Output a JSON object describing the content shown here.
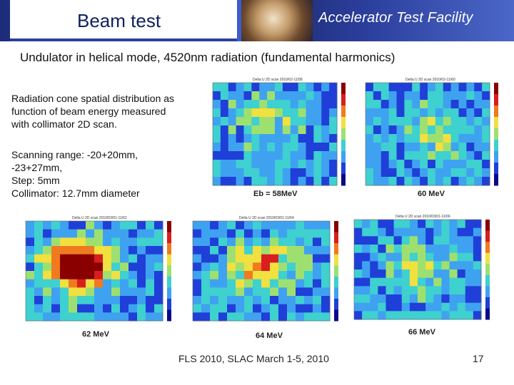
{
  "header": {
    "title": "Beam test",
    "brand": "Accelerator Test Facility"
  },
  "subtitle": "Undulator in helical mode, 4520nm radiation (fundamental harmonics)",
  "description": [
    "Radiation cone spatial distribution as",
    "function of beam energy measured",
    "with collimator 2D scan."
  ],
  "scan_info": [
    "Scanning range:  -20+20mm,",
    "-23+27mm,",
    "Step: 5mm",
    "Collimator: 12.7mm diameter"
  ],
  "plots": [
    {
      "caption": "Eb = 58MeV",
      "plot_title": "Delta U 2D scan 2010/02-11/58",
      "peak": 0.25,
      "colors": {
        "low": "#1f3fd8",
        "mid": "#3fa2f0",
        "high": "#b8f0f5"
      }
    },
    {
      "caption": "60 MeV",
      "plot_title": "Delta U 2D scan 2010/02-11/60",
      "peak": 0.3,
      "colors": {
        "low": "#1f3fd8",
        "mid": "#3fa2f0",
        "high": "#b8f0f5"
      }
    },
    {
      "caption": "62 MeV",
      "plot_title": "Delta U 2D scan 2010/03/01-11/62",
      "peak": 1.0,
      "colors": {
        "low": "#1f3fd8",
        "mid": "#3fa2f0",
        "high": "#d81e1e"
      }
    },
    {
      "caption": "64 MeV",
      "plot_title": "Delta U 2D scan 2010/03/01-11/64",
      "peak": 0.6,
      "colors": {
        "low": "#1f3fd8",
        "mid": "#3fa2f0",
        "high": "#f0e040"
      }
    },
    {
      "caption": "66 MeV",
      "plot_title": "Delta U 2D scan 2010/03/01-11/66",
      "peak": 0.3,
      "colors": {
        "low": "#1f3fd8",
        "mid": "#3fa2f0",
        "high": "#b8f0f5"
      }
    }
  ],
  "colorscale": [
    "#8a0000",
    "#d81e1e",
    "#f07a20",
    "#f0e040",
    "#9ee070",
    "#3fd0d0",
    "#3fa2f0",
    "#1f3fd8",
    "#0a0a8a"
  ],
  "footer": "FLS 2010, SLAC March 1-5, 2010",
  "page_number": "17"
}
